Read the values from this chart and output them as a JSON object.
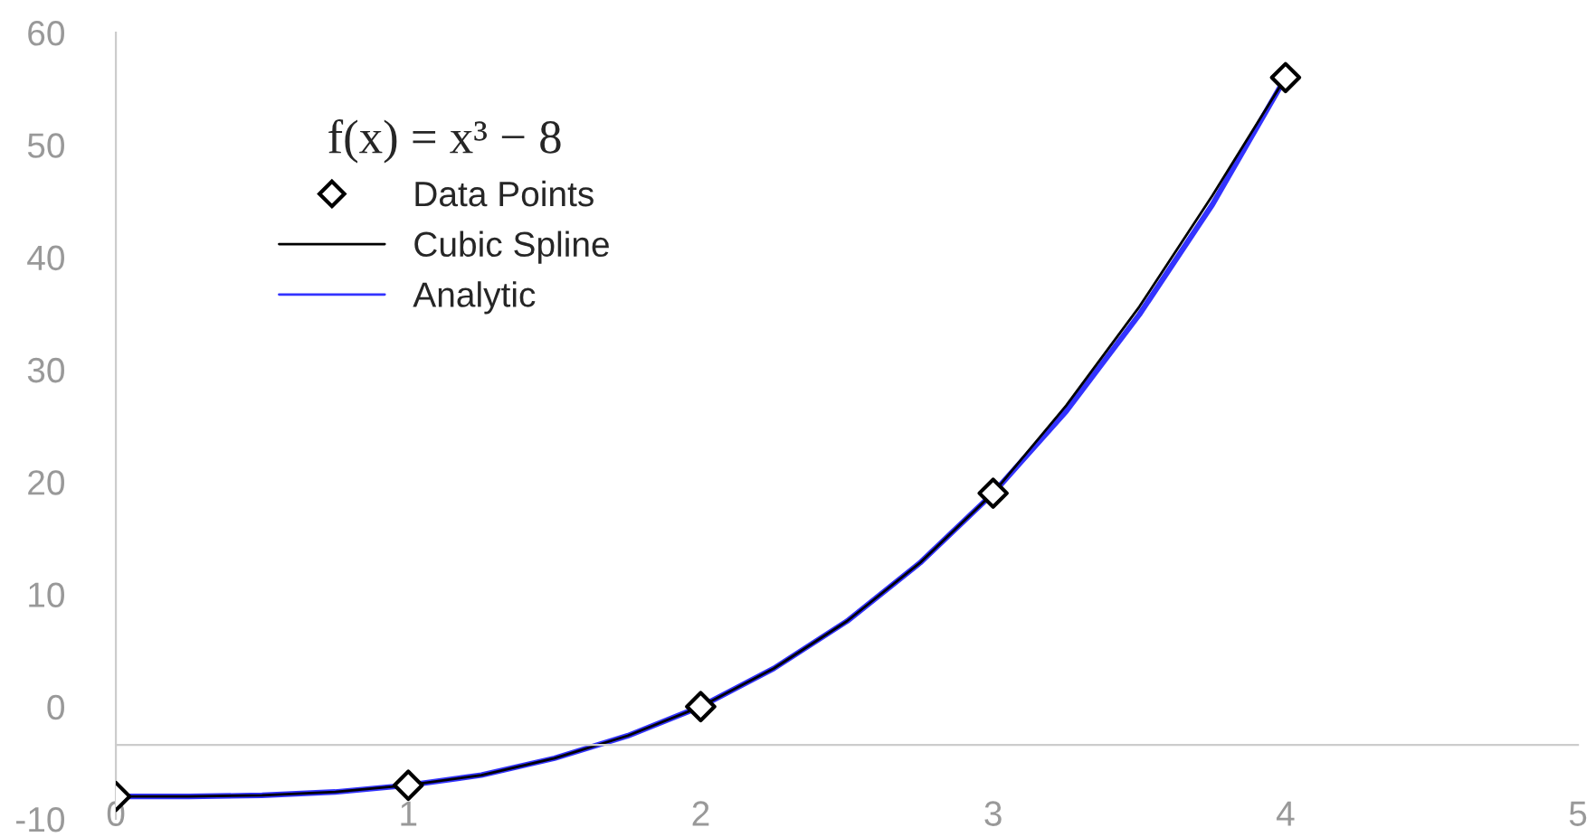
{
  "chart_data": {
    "type": "line",
    "legend_title": "f(x) = x³ − 8",
    "xlim": [
      0,
      5
    ],
    "xticks": [
      0,
      1,
      2,
      3,
      4,
      5
    ],
    "ylim": [
      -10,
      60
    ],
    "yticks": [
      -10,
      0,
      10,
      20,
      30,
      40,
      50,
      60
    ],
    "grid": false,
    "legend": "top left",
    "series": [
      {
        "name": "Data Points",
        "type": "scatter",
        "marker": "diamond",
        "color": "#000000",
        "x": [
          0,
          1,
          2,
          3,
          4
        ],
        "values": [
          -8,
          -7,
          0,
          19,
          56
        ]
      },
      {
        "name": "Cubic Spline",
        "marker": "none",
        "color": "#000000",
        "x": [
          0,
          0.25,
          0.5,
          0.75,
          1,
          1.25,
          1.5,
          1.75,
          2,
          2.25,
          2.5,
          2.75,
          3,
          3.25,
          3.5,
          3.75,
          4
        ],
        "values": [
          -8,
          -8,
          -7.9,
          -7.6,
          -7,
          -6.1,
          -4.6,
          -2.6,
          0,
          3.4,
          7.6,
          12.8,
          19,
          26.8,
          35.6,
          45.5,
          56
        ]
      },
      {
        "name": "Analytic",
        "marker": "none",
        "color": "#3333ff",
        "x": [
          0,
          0.25,
          0.5,
          0.75,
          1,
          1.25,
          1.5,
          1.75,
          2,
          2.25,
          2.5,
          2.75,
          3,
          3.25,
          3.5,
          3.75,
          4
        ],
        "values": [
          -8,
          -8,
          -7.9,
          -7.6,
          -7,
          -6.1,
          -4.6,
          -2.6,
          0,
          3.4,
          7.6,
          12.8,
          19,
          26.3,
          34.9,
          44.7,
          56
        ]
      }
    ]
  }
}
